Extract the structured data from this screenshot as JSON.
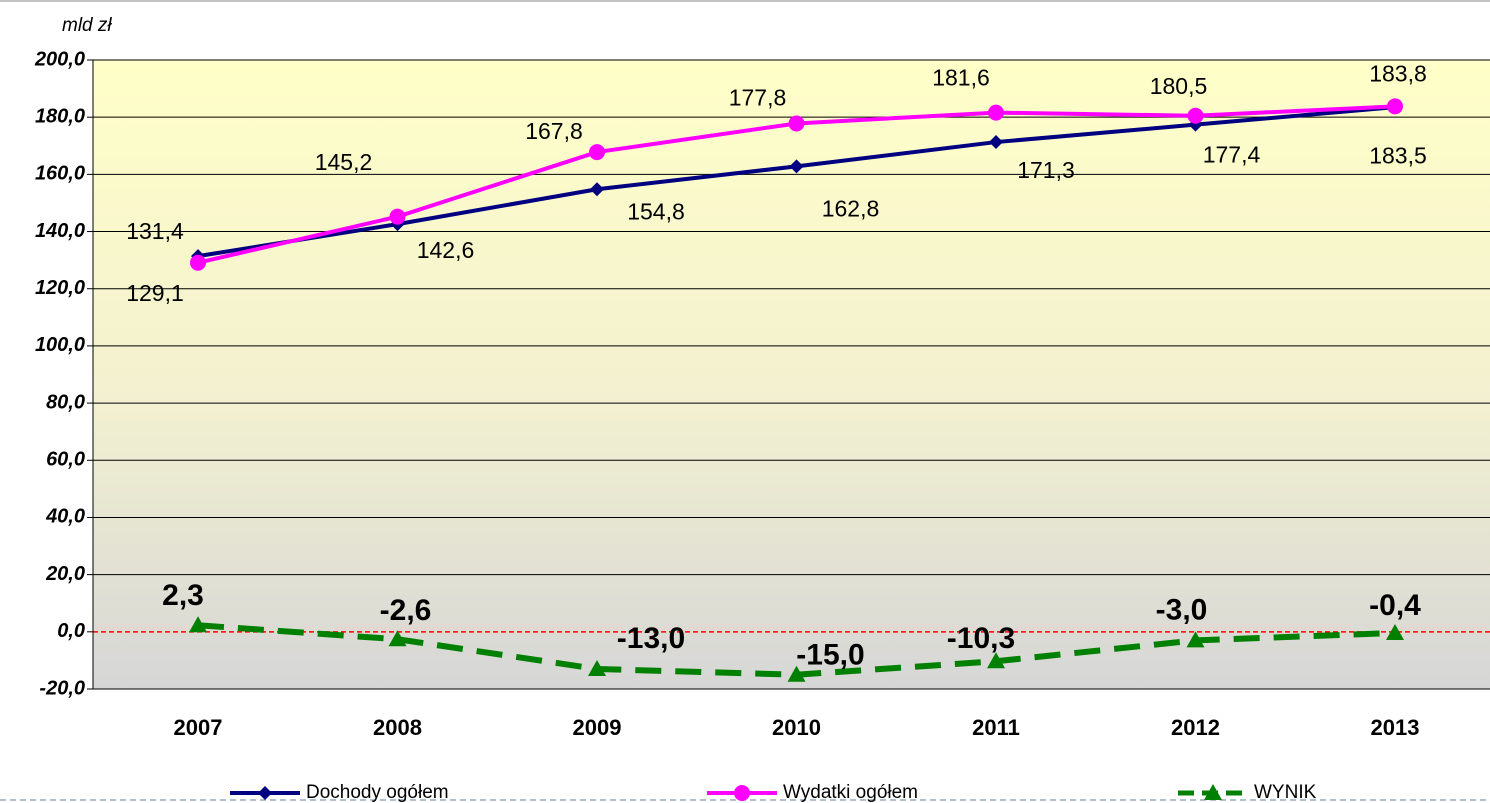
{
  "chart_data": {
    "type": "line",
    "y_axis_label": "mld zł",
    "categories": [
      "2007",
      "2008",
      "2009",
      "2010",
      "2011",
      "2012",
      "2013"
    ],
    "series": [
      {
        "name": "Dochody ogółem",
        "color": "#000080",
        "marker": "diamond",
        "dashed": false,
        "values": [
          131.4,
          142.6,
          154.8,
          162.8,
          171.3,
          177.4,
          183.5
        ],
        "value_labels": [
          "131,4",
          "142,6",
          "154,8",
          "162,8",
          "171,3",
          "177,4",
          "183,5"
        ]
      },
      {
        "name": "Wydatki ogółem",
        "color": "#ff00ff",
        "marker": "circle",
        "dashed": false,
        "values": [
          129.1,
          145.2,
          167.8,
          177.8,
          181.6,
          180.5,
          183.8
        ],
        "value_labels": [
          "129,1",
          "145,2",
          "167,8",
          "177,8",
          "181,6",
          "180,5",
          "183,8"
        ]
      },
      {
        "name": "WYNIK",
        "color": "#008000",
        "marker": "triangle",
        "dashed": true,
        "values": [
          2.3,
          -2.6,
          -13.0,
          -15.0,
          -10.3,
          -3.0,
          -0.4
        ],
        "value_labels": [
          "2,3",
          "-2,6",
          "-13,0",
          "-15,0",
          "-10,3",
          "-3,0",
          "-0,4"
        ]
      }
    ],
    "ylim": [
      -20,
      200
    ],
    "yticks": [
      {
        "value": -20,
        "label": "-20,0"
      },
      {
        "value": 0,
        "label": "0,0"
      },
      {
        "value": 20,
        "label": "20,0"
      },
      {
        "value": 40,
        "label": "40,0"
      },
      {
        "value": 60,
        "label": "60,0"
      },
      {
        "value": 80,
        "label": "80,0"
      },
      {
        "value": 100,
        "label": "100,0"
      },
      {
        "value": 120,
        "label": "120,0"
      },
      {
        "value": 140,
        "label": "140,0"
      },
      {
        "value": 160,
        "label": "160,0"
      },
      {
        "value": 180,
        "label": "180,0"
      },
      {
        "value": 200,
        "label": "200,0"
      }
    ],
    "grid": true,
    "legend": "bottom"
  }
}
